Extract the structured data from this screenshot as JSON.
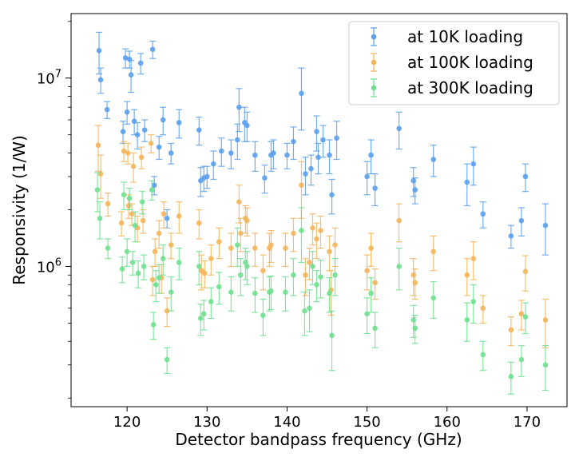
{
  "chart_data": {
    "type": "scatter",
    "title": "",
    "xlabel": "Detector bandpass frequency (GHz)",
    "ylabel": "Responsivity (1/W)",
    "xlim": [
      113,
      175
    ],
    "ylim": [
      180000,
      22000000
    ],
    "yscale": "log",
    "grid": false,
    "legend_position": "top-right",
    "x_ticks": [
      120,
      130,
      140,
      150,
      160,
      170
    ],
    "x_tick_labels": [
      "120",
      "130",
      "140",
      "150",
      "160",
      "170"
    ],
    "y_major_ticks": [
      1000000,
      10000000
    ],
    "y_tick_labels": [
      {
        "base": "10",
        "exp": "6"
      },
      {
        "base": "10",
        "exp": "7"
      }
    ],
    "series": [
      {
        "name": "at 10K loading",
        "color": "#5aa0ef",
        "points": [
          [
            116.5,
            14000000,
            3500000
          ],
          [
            116.7,
            9800000,
            1500000
          ],
          [
            117.5,
            6800000,
            700000
          ],
          [
            119.5,
            5200000,
            700000
          ],
          [
            119.8,
            12800000,
            1500000
          ],
          [
            120.0,
            6600000,
            900000
          ],
          [
            120.3,
            12600000,
            1300000
          ],
          [
            120.5,
            10400000,
            2000000
          ],
          [
            120.9,
            5900000,
            900000
          ],
          [
            121.3,
            5000000,
            800000
          ],
          [
            121.7,
            12000000,
            1500000
          ],
          [
            122.2,
            5300000,
            700000
          ],
          [
            123.2,
            14200000,
            1500000
          ],
          [
            123.4,
            2700000,
            300000
          ],
          [
            124.0,
            4300000,
            600000
          ],
          [
            124.5,
            6000000,
            1000000
          ],
          [
            125.0,
            1800000,
            200000
          ],
          [
            125.5,
            4000000,
            500000
          ],
          [
            126.5,
            5800000,
            1000000
          ],
          [
            129.0,
            5300000,
            900000
          ],
          [
            129.2,
            2850000,
            500000
          ],
          [
            129.6,
            2950000,
            450000
          ],
          [
            130.0,
            3000000,
            400000
          ],
          [
            130.8,
            3500000,
            600000
          ],
          [
            131.8,
            4100000,
            700000
          ],
          [
            133.0,
            4000000,
            700000
          ],
          [
            133.8,
            4700000,
            1000000
          ],
          [
            134.0,
            7000000,
            1800000
          ],
          [
            134.7,
            5800000,
            1200000
          ],
          [
            135.0,
            5600000,
            1000000
          ],
          [
            136.0,
            3900000,
            700000
          ],
          [
            137.2,
            2950000,
            500000
          ],
          [
            138.0,
            3900000,
            700000
          ],
          [
            138.3,
            4000000,
            700000
          ],
          [
            140.0,
            3900000,
            600000
          ],
          [
            140.8,
            4600000,
            900000
          ],
          [
            141.8,
            8300000,
            3000000
          ],
          [
            142.3,
            3100000,
            700000
          ],
          [
            143.0,
            3300000,
            600000
          ],
          [
            143.7,
            5200000,
            1100000
          ],
          [
            143.9,
            3800000,
            700000
          ],
          [
            144.5,
            4700000,
            900000
          ],
          [
            145.3,
            3900000,
            800000
          ],
          [
            145.6,
            2400000,
            500000
          ],
          [
            146.2,
            4800000,
            1100000
          ],
          [
            150.0,
            3000000,
            600000
          ],
          [
            150.5,
            3900000,
            800000
          ],
          [
            151.0,
            2600000,
            500000
          ],
          [
            154.0,
            5400000,
            1200000
          ],
          [
            155.8,
            2850000,
            500000
          ],
          [
            156.0,
            2550000,
            400000
          ],
          [
            158.3,
            3700000,
            700000
          ],
          [
            162.5,
            2800000,
            700000
          ],
          [
            163.3,
            3500000,
            800000
          ],
          [
            164.5,
            1900000,
            300000
          ],
          [
            168.0,
            1450000,
            200000
          ],
          [
            169.3,
            1750000,
            300000
          ],
          [
            169.8,
            3000000,
            500000
          ],
          [
            172.3,
            1650000,
            500000
          ]
        ]
      },
      {
        "name": "at 100K loading",
        "color": "#f4b55a",
        "points": [
          [
            116.4,
            4400000,
            1200000
          ],
          [
            116.7,
            3100000,
            800000
          ],
          [
            117.6,
            2150000,
            300000
          ],
          [
            119.3,
            1700000,
            250000
          ],
          [
            119.6,
            4100000,
            500000
          ],
          [
            120.1,
            4000000,
            500000
          ],
          [
            120.2,
            2100000,
            300000
          ],
          [
            120.6,
            1900000,
            250000
          ],
          [
            120.8,
            3400000,
            600000
          ],
          [
            121.3,
            1600000,
            250000
          ],
          [
            121.8,
            3800000,
            500000
          ],
          [
            122.0,
            1750000,
            250000
          ],
          [
            123.0,
            4500000,
            500000
          ],
          [
            123.2,
            850000,
            150000
          ],
          [
            123.5,
            1200000,
            200000
          ],
          [
            124.0,
            1500000,
            250000
          ],
          [
            124.3,
            870000,
            150000
          ],
          [
            124.6,
            1900000,
            300000
          ],
          [
            125.0,
            580000,
            100000
          ],
          [
            125.5,
            1300000,
            200000
          ],
          [
            126.5,
            1850000,
            350000
          ],
          [
            129.0,
            1700000,
            300000
          ],
          [
            129.3,
            950000,
            200000
          ],
          [
            129.7,
            920000,
            150000
          ],
          [
            130.5,
            1100000,
            200000
          ],
          [
            131.5,
            1350000,
            250000
          ],
          [
            133.0,
            1250000,
            250000
          ],
          [
            134.0,
            2200000,
            500000
          ],
          [
            134.2,
            1500000,
            300000
          ],
          [
            134.8,
            1800000,
            300000
          ],
          [
            135.0,
            1750000,
            300000
          ],
          [
            136.0,
            1250000,
            250000
          ],
          [
            137.0,
            950000,
            200000
          ],
          [
            137.8,
            1250000,
            250000
          ],
          [
            138.0,
            1300000,
            250000
          ],
          [
            139.8,
            1250000,
            250000
          ],
          [
            140.8,
            1500000,
            300000
          ],
          [
            141.8,
            2700000,
            900000
          ],
          [
            142.3,
            900000,
            200000
          ],
          [
            142.8,
            1050000,
            200000
          ],
          [
            143.2,
            1600000,
            300000
          ],
          [
            143.7,
            1400000,
            300000
          ],
          [
            144.2,
            1550000,
            300000
          ],
          [
            145.3,
            1200000,
            250000
          ],
          [
            145.5,
            750000,
            200000
          ],
          [
            146.0,
            1300000,
            300000
          ],
          [
            150.0,
            950000,
            200000
          ],
          [
            150.5,
            1250000,
            250000
          ],
          [
            151.0,
            820000,
            150000
          ],
          [
            154.0,
            1750000,
            400000
          ],
          [
            155.8,
            900000,
            200000
          ],
          [
            156.0,
            820000,
            150000
          ],
          [
            158.3,
            1200000,
            250000
          ],
          [
            162.5,
            900000,
            200000
          ],
          [
            163.3,
            1100000,
            250000
          ],
          [
            164.5,
            600000,
            100000
          ],
          [
            168.0,
            460000,
            80000
          ],
          [
            169.3,
            560000,
            100000
          ],
          [
            169.8,
            940000,
            200000
          ],
          [
            172.3,
            520000,
            150000
          ]
        ]
      },
      {
        "name": "at 300K loading",
        "color": "#6fe08f",
        "points": [
          [
            116.3,
            2550000,
            600000
          ],
          [
            116.6,
            1800000,
            400000
          ],
          [
            117.6,
            1250000,
            150000
          ],
          [
            119.4,
            970000,
            150000
          ],
          [
            119.6,
            2400000,
            400000
          ],
          [
            120.0,
            1200000,
            200000
          ],
          [
            120.3,
            2300000,
            300000
          ],
          [
            120.7,
            1050000,
            150000
          ],
          [
            121.0,
            1650000,
            300000
          ],
          [
            121.4,
            920000,
            150000
          ],
          [
            121.9,
            2200000,
            300000
          ],
          [
            122.1,
            1000000,
            150000
          ],
          [
            123.1,
            2550000,
            300000
          ],
          [
            123.3,
            490000,
            80000
          ],
          [
            123.6,
            800000,
            150000
          ],
          [
            124.0,
            870000,
            150000
          ],
          [
            124.5,
            1100000,
            200000
          ],
          [
            125.0,
            320000,
            50000
          ],
          [
            125.5,
            730000,
            150000
          ],
          [
            126.5,
            1050000,
            200000
          ],
          [
            129.0,
            1000000,
            200000
          ],
          [
            129.2,
            530000,
            100000
          ],
          [
            129.6,
            560000,
            100000
          ],
          [
            130.5,
            650000,
            120000
          ],
          [
            131.5,
            780000,
            150000
          ],
          [
            133.0,
            730000,
            150000
          ],
          [
            133.8,
            1300000,
            300000
          ],
          [
            134.2,
            900000,
            200000
          ],
          [
            134.8,
            1050000,
            200000
          ],
          [
            135.0,
            1000000,
            200000
          ],
          [
            136.0,
            720000,
            150000
          ],
          [
            137.0,
            550000,
            120000
          ],
          [
            137.8,
            730000,
            150000
          ],
          [
            138.0,
            740000,
            150000
          ],
          [
            139.8,
            730000,
            150000
          ],
          [
            140.8,
            900000,
            200000
          ],
          [
            141.8,
            1550000,
            500000
          ],
          [
            142.2,
            580000,
            150000
          ],
          [
            142.8,
            600000,
            150000
          ],
          [
            143.2,
            1000000,
            200000
          ],
          [
            143.7,
            800000,
            150000
          ],
          [
            144.2,
            880000,
            200000
          ],
          [
            145.3,
            720000,
            150000
          ],
          [
            145.6,
            430000,
            150000
          ],
          [
            146.0,
            900000,
            200000
          ],
          [
            150.0,
            560000,
            120000
          ],
          [
            150.5,
            720000,
            150000
          ],
          [
            151.0,
            470000,
            100000
          ],
          [
            154.0,
            1000000,
            250000
          ],
          [
            155.8,
            520000,
            100000
          ],
          [
            156.0,
            470000,
            80000
          ],
          [
            158.3,
            680000,
            150000
          ],
          [
            162.5,
            520000,
            120000
          ],
          [
            163.3,
            650000,
            150000
          ],
          [
            164.5,
            340000,
            60000
          ],
          [
            168.0,
            260000,
            50000
          ],
          [
            169.3,
            320000,
            60000
          ],
          [
            169.8,
            540000,
            100000
          ],
          [
            172.3,
            300000,
            80000
          ]
        ]
      }
    ]
  }
}
